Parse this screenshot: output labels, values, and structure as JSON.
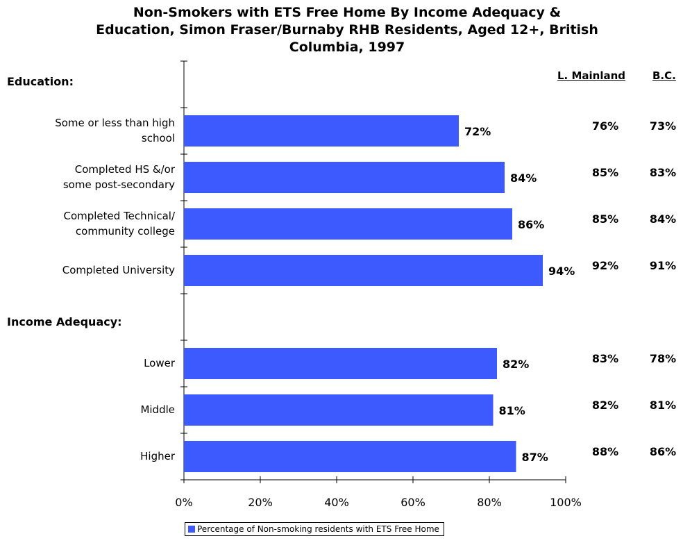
{
  "chart_data": {
    "type": "bar",
    "orientation": "horizontal",
    "title": "Non-Smokers with ETS Free Home By Income Adequacy & Education, Simon Fraser/Burnaby RHB Residents, Aged 12+, British Columbia, 1997",
    "title_lines": [
      "Non-Smokers with ETS Free Home By Income Adequacy &",
      "Education, Simon Fraser/Burnaby RHB Residents, Aged 12+, British",
      "Columbia, 1997"
    ],
    "groups": [
      {
        "label": "Education:",
        "categories": [
          {
            "label_lines": [
              "Some or less than high",
              "school"
            ],
            "value": 72,
            "value_label": "72%",
            "l_mainland": "76%",
            "bc": "73%"
          },
          {
            "label_lines": [
              "Completed HS &/or",
              "some post-secondary"
            ],
            "value": 84,
            "value_label": "84%",
            "l_mainland": "85%",
            "bc": "83%"
          },
          {
            "label_lines": [
              "Completed Technical/",
              "community college"
            ],
            "value": 86,
            "value_label": "86%",
            "l_mainland": "85%",
            "bc": "84%"
          },
          {
            "label_lines": [
              "Completed University"
            ],
            "value": 94,
            "value_label": "94%",
            "l_mainland": "92%",
            "bc": "91%"
          }
        ]
      },
      {
        "label": "Income Adequacy:",
        "categories": [
          {
            "label_lines": [
              "Lower"
            ],
            "value": 82,
            "value_label": "82%",
            "l_mainland": "83%",
            "bc": "78%"
          },
          {
            "label_lines": [
              "Middle"
            ],
            "value": 81,
            "value_label": "81%",
            "l_mainland": "82%",
            "bc": "81%"
          },
          {
            "label_lines": [
              "Higher"
            ],
            "value": 87,
            "value_label": "87%",
            "l_mainland": "88%",
            "bc": "86%"
          }
        ]
      }
    ],
    "comparison_headers": {
      "l_mainland": "L. Mainland",
      "bc": "B.C."
    },
    "x_ticks": [
      "0%",
      "20%",
      "40%",
      "60%",
      "80%",
      "100%"
    ],
    "xlim": [
      0,
      100
    ],
    "series": [
      {
        "name": "Percentage of Non-smoking residents with ETS Free Home"
      }
    ],
    "legend_position": "bottom",
    "grid": false,
    "colors": {
      "bar": "#3d5aff"
    }
  }
}
